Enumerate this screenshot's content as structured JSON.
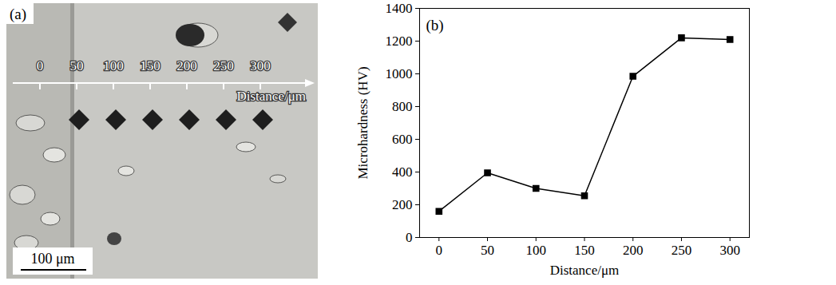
{
  "chart_data": {
    "type": "line",
    "title": "(b)",
    "x_label": "Distance/μm",
    "y_label": "Microhardness (HV)",
    "x": [
      0,
      50,
      100,
      150,
      200,
      250,
      300
    ],
    "values": [
      160,
      395,
      300,
      255,
      985,
      1220,
      1210
    ],
    "color": "#000000",
    "marker": "square",
    "line_style": "solid",
    "xlim": [
      -20,
      320
    ],
    "xticks": [
      0,
      50,
      100,
      150,
      200,
      250,
      300
    ],
    "ylim": [
      0,
      1400
    ],
    "yticks": [
      0,
      200,
      400,
      600,
      800,
      1000,
      1200,
      1400
    ],
    "grid": false
  },
  "micrograph": {
    "title": "(a)",
    "axis_label": "Distance/μm",
    "ticks": [
      0,
      50,
      100,
      150,
      200,
      250,
      300
    ],
    "scale_bar": "100 μm"
  }
}
